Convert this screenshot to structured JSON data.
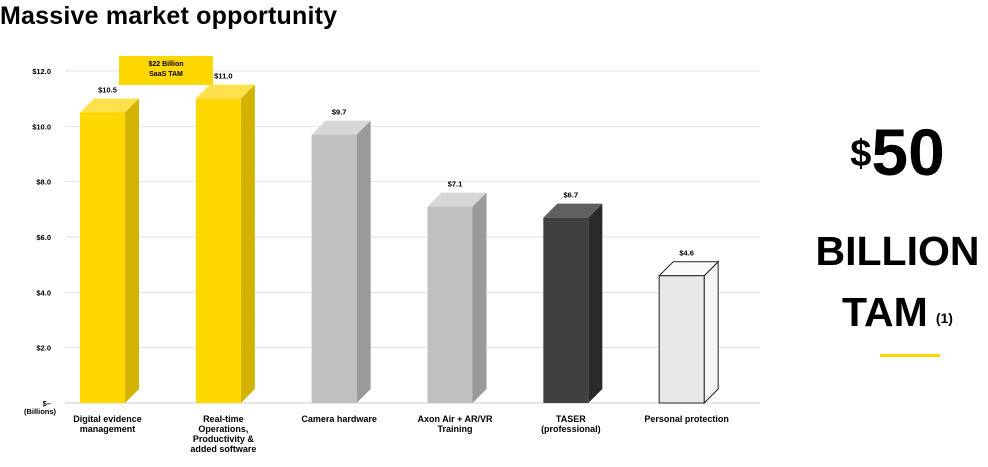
{
  "page": {
    "title": "Massive market opportunity"
  },
  "callout": {
    "line1": "$22 Billion",
    "line2": "SaaS TAM"
  },
  "side": {
    "dollar": "$",
    "amount": "50",
    "billion": "BILLION",
    "tam": "TAM",
    "footnote": "(1)"
  },
  "chart_data": {
    "type": "bar",
    "y_ticks": [
      "$12.0",
      "$10.0",
      "$8.0",
      "$6.0",
      "$4.0",
      "$2.0",
      "$–"
    ],
    "y_unit": "(Billions)",
    "ylim": [
      0,
      12
    ],
    "categories": [
      [
        "Digital evidence",
        "management"
      ],
      [
        "Real-time",
        "Operations,",
        "Productivity &",
        "added software"
      ],
      [
        "Camera hardware"
      ],
      [
        "Axon Air + AR/VR",
        "Training"
      ],
      [
        "TASER",
        "(professional)"
      ],
      [
        "Personal protection"
      ]
    ],
    "values": [
      10.5,
      11.0,
      9.7,
      7.1,
      6.7,
      4.6
    ],
    "value_labels": [
      "$10.5",
      "$11.0",
      "$9.7",
      "$7.1",
      "$6.7",
      "$4.6"
    ],
    "colors": [
      {
        "front": "#ffd700",
        "side": "#d4b200",
        "top": "#ffe14d",
        "stroke": "none"
      },
      {
        "front": "#ffd700",
        "side": "#d4b200",
        "top": "#ffe14d",
        "stroke": "none"
      },
      {
        "front": "#c0c0c0",
        "side": "#9a9a9a",
        "top": "#d6d6d6",
        "stroke": "none"
      },
      {
        "front": "#c0c0c0",
        "side": "#9a9a9a",
        "top": "#d6d6d6",
        "stroke": "none"
      },
      {
        "front": "#404040",
        "side": "#2a2a2a",
        "top": "#606060",
        "stroke": "none"
      },
      {
        "front": "#e8e8e8",
        "side": "#f4f4f4",
        "top": "#fafafa",
        "stroke": "#222222"
      }
    ],
    "grid": true
  }
}
